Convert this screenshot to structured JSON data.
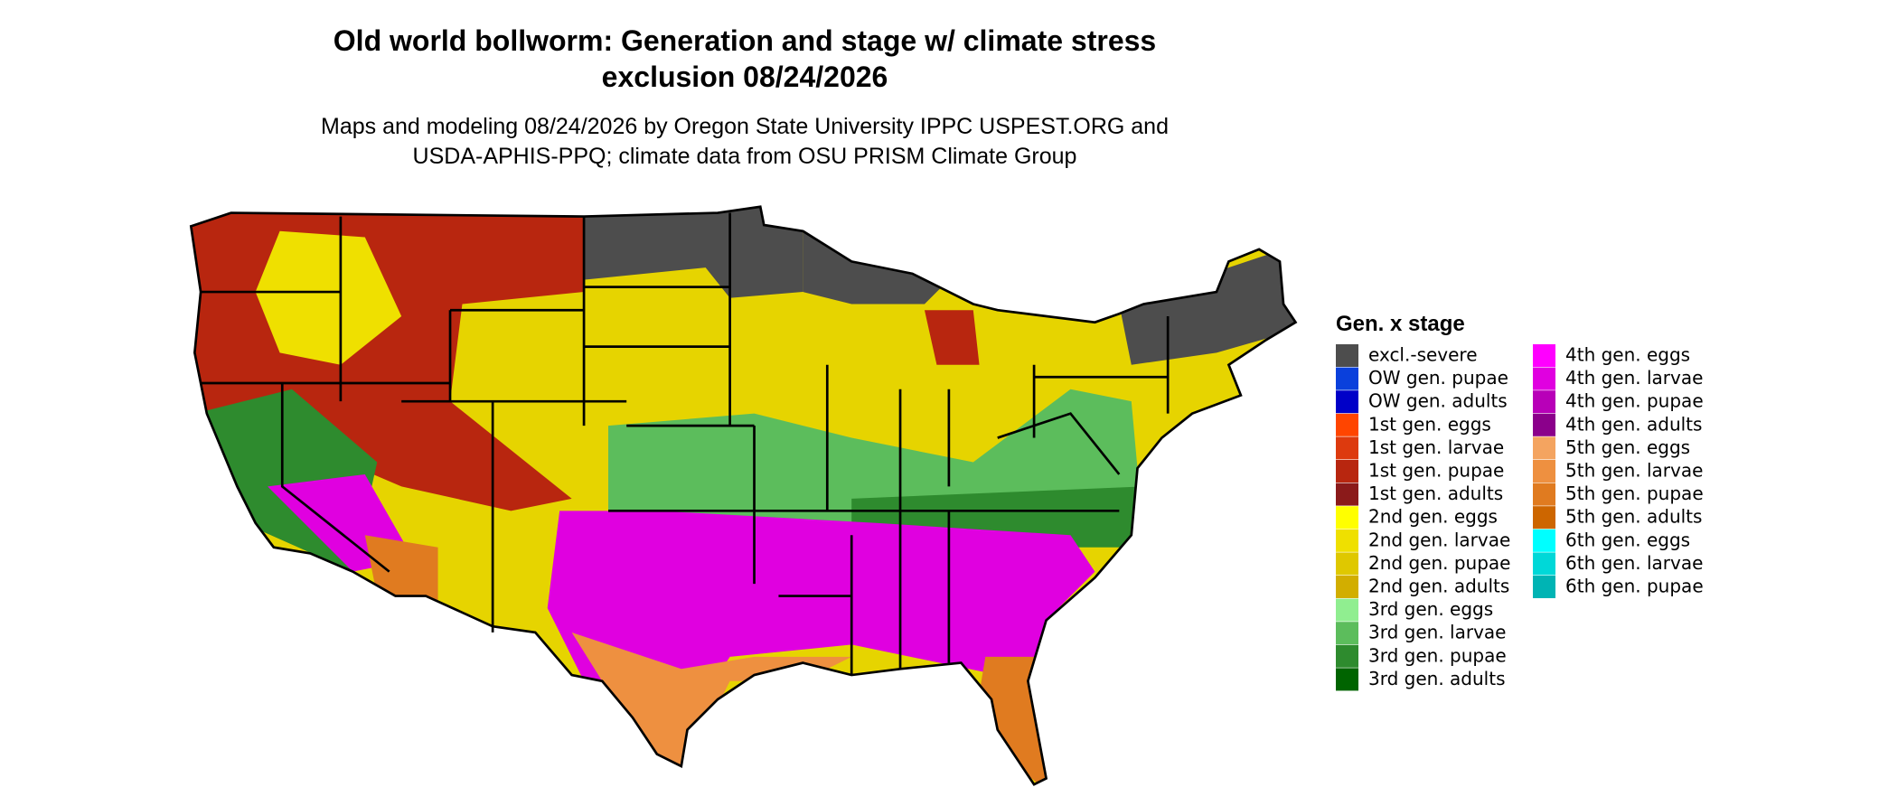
{
  "title_lines": [
    "Old world bollworm: Generation and stage w/ climate stress",
    "exclusion 08/24/2026"
  ],
  "subtitle_lines": [
    "Maps and modeling 08/24/2026 by Oregon State University IPPC USPEST.ORG and",
    "USDA-APHIS-PPQ; climate data from OSU PRISM Climate Group"
  ],
  "legend": {
    "title": "Gen. x stage",
    "items": [
      {
        "label": "excl.-severe",
        "color": "#4d4d4d"
      },
      {
        "label": "OW gen. pupae",
        "color": "#0a40dc"
      },
      {
        "label": "OW gen. adults",
        "color": "#0000c8"
      },
      {
        "label": "1st gen. eggs",
        "color": "#ff4500"
      },
      {
        "label": "1st gen. larvae",
        "color": "#dd3a0e"
      },
      {
        "label": "1st gen. pupae",
        "color": "#b8260f"
      },
      {
        "label": "1st gen. adults",
        "color": "#8b1a1a"
      },
      {
        "label": "2nd gen. eggs",
        "color": "#ffff00"
      },
      {
        "label": "2nd gen. larvae",
        "color": "#efe000"
      },
      {
        "label": "2nd gen. pupae",
        "color": "#dfc800"
      },
      {
        "label": "2nd gen. adults",
        "color": "#d2ae00"
      },
      {
        "label": "3rd gen. eggs",
        "color": "#90ee90"
      },
      {
        "label": "3rd gen. larvae",
        "color": "#5cbd5c"
      },
      {
        "label": "3rd gen. pupae",
        "color": "#2e8b2e"
      },
      {
        "label": "3rd gen. adults",
        "color": "#006400"
      },
      {
        "label": "4th gen. eggs",
        "color": "#ff00ff"
      },
      {
        "label": "4th gen. larvae",
        "color": "#e000e0"
      },
      {
        "label": "4th gen. pupae",
        "color": "#b800b8"
      },
      {
        "label": "4th gen. adults",
        "color": "#8b008b"
      },
      {
        "label": "5th gen. eggs",
        "color": "#f4a460"
      },
      {
        "label": "5th gen. larvae",
        "color": "#ee9040"
      },
      {
        "label": "5th gen. pupae",
        "color": "#e07b20"
      },
      {
        "label": "5th gen. adults",
        "color": "#cd6600"
      },
      {
        "label": "6th gen. eggs",
        "color": "#00ffff"
      },
      {
        "label": "6th gen. larvae",
        "color": "#00d8d8"
      },
      {
        "label": "6th gen. pupae",
        "color": "#00b4b4"
      }
    ]
  }
}
